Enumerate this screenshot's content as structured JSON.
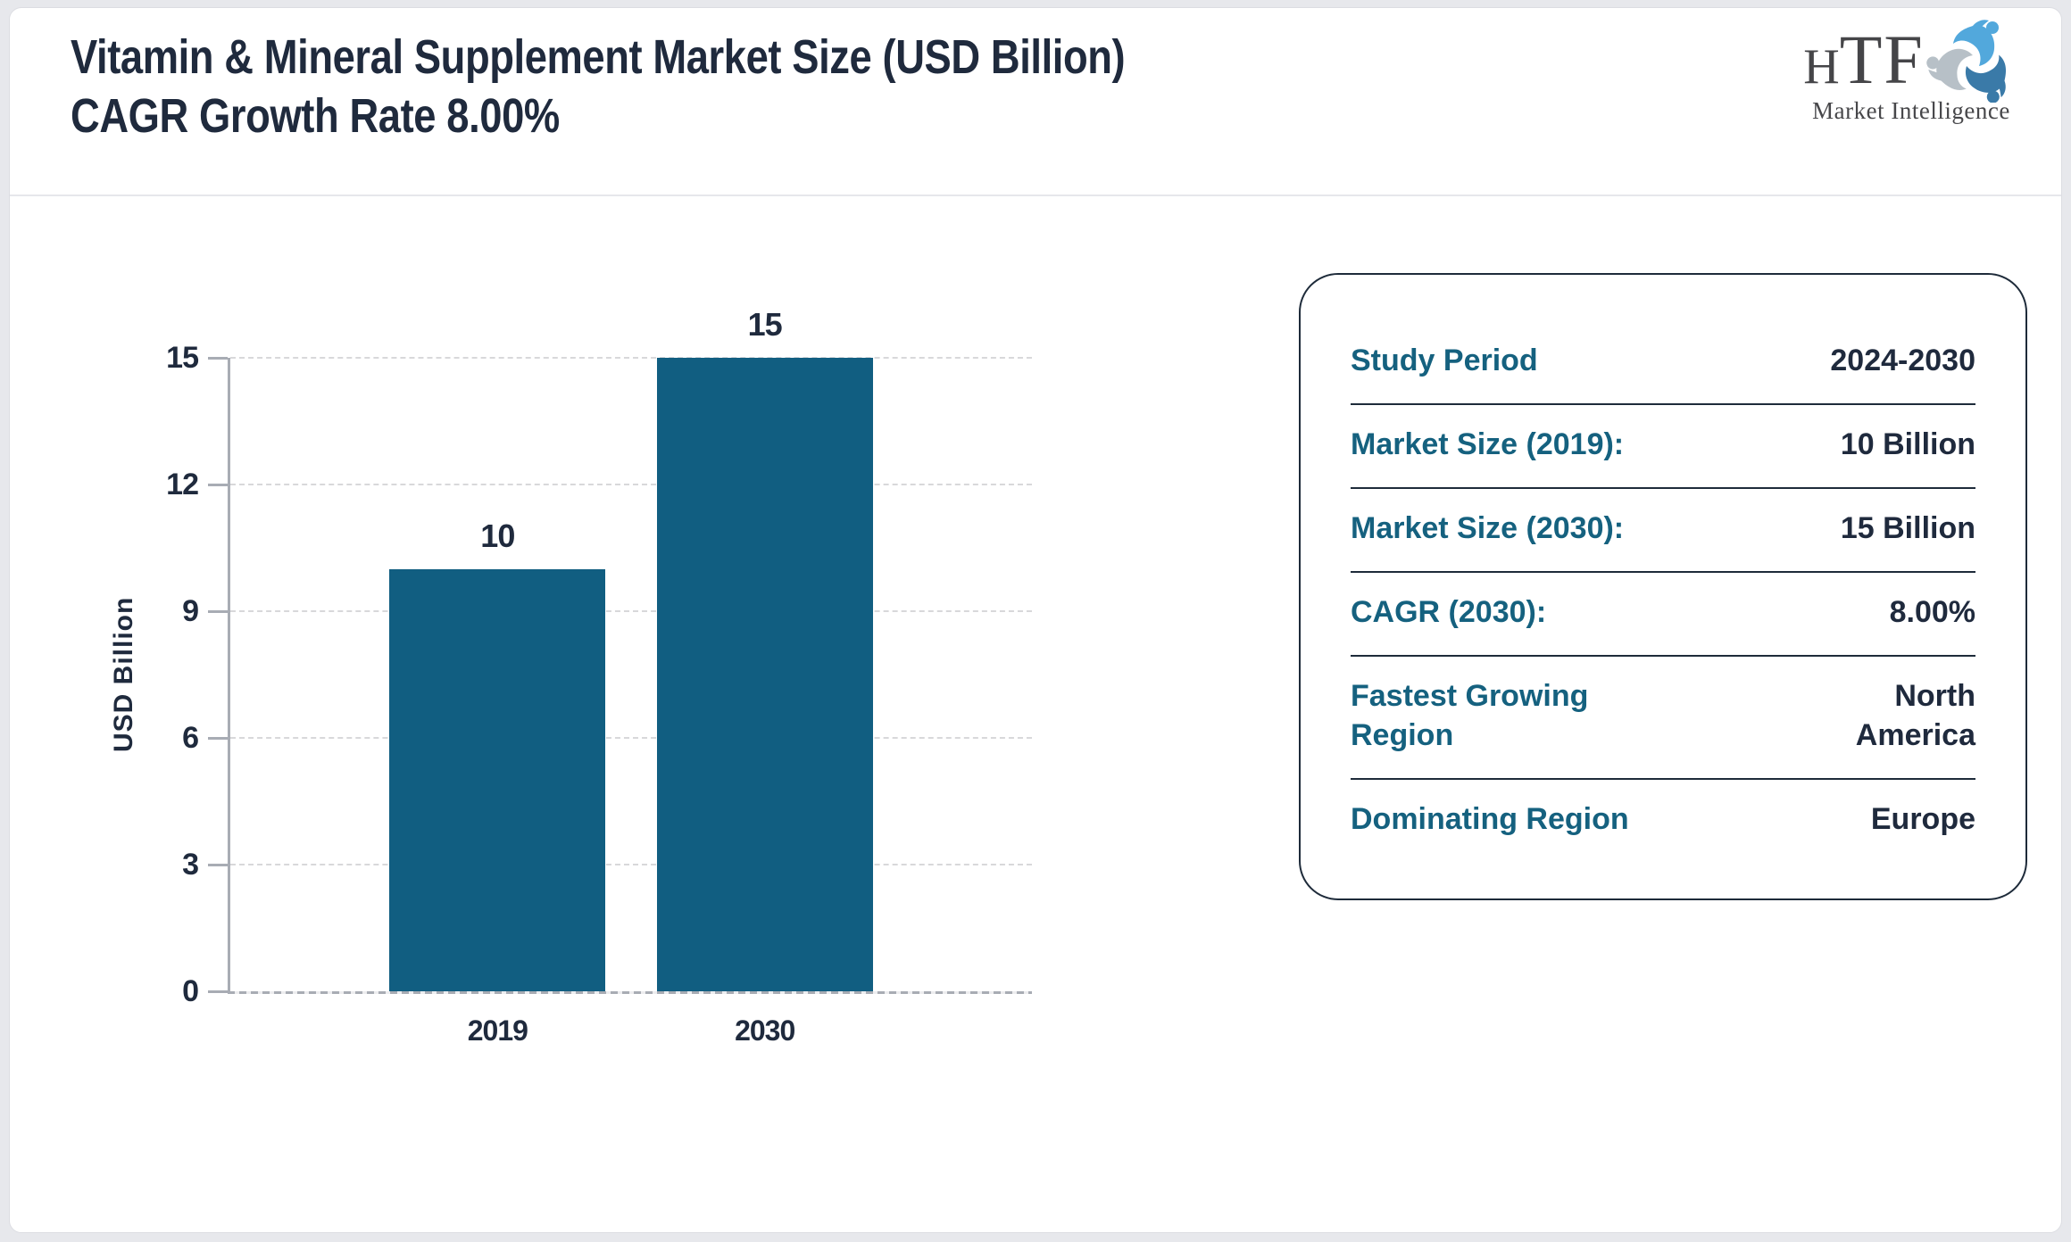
{
  "header": {
    "title": "Vitamin & Mineral Supplement Market Size (USD Billion) CAGR Growth Rate 8.00%",
    "logo": {
      "text_small": "H",
      "text_large": "TF",
      "subtitle": "Market Intelligence",
      "icon": "htf-swirl-icon",
      "colors": {
        "light_blue": "#52A8DC",
        "steel_blue": "#3A7AA8",
        "gray": "#B7C0C7",
        "text": "#454548"
      }
    }
  },
  "chart_data": {
    "type": "bar",
    "title": "",
    "categories": [
      "2019",
      "2030"
    ],
    "values": [
      10,
      15
    ],
    "xlabel": "",
    "ylabel": "USD Billion",
    "ylim": [
      0,
      15
    ],
    "yticks": [
      0,
      3,
      6,
      9,
      12,
      15
    ],
    "grid": "horizontal-dashed",
    "legend": "none",
    "data_labels": true,
    "bar_color": "#115E81",
    "tick_color": "#1F2A3D"
  },
  "panel": {
    "label_color": "#15617F",
    "value_color": "#1F2A3D",
    "rows": [
      {
        "label": "Study Period",
        "value": "2024-2030"
      },
      {
        "label": "Market Size (2019):",
        "value": "10 Billion"
      },
      {
        "label": "Market Size (2030):",
        "value": "15 Billion"
      },
      {
        "label": "CAGR (2030):",
        "value": "8.00%"
      },
      {
        "label": "Fastest Growing Region",
        "value": "North America"
      },
      {
        "label": "Dominating Region",
        "value": "Europe"
      }
    ]
  }
}
